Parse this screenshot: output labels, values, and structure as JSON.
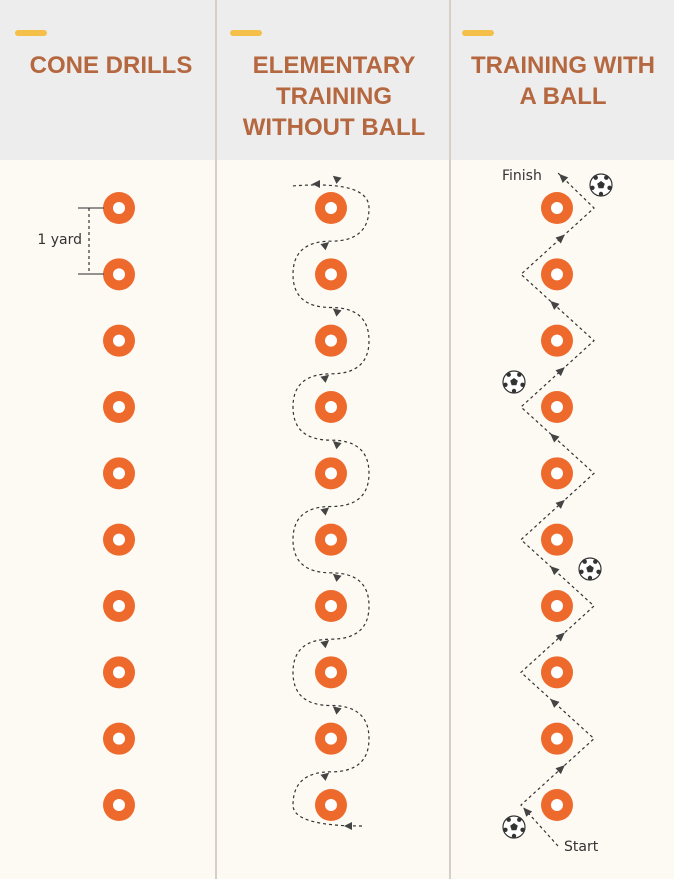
{
  "columns": [
    {
      "title": "CONE DRILLS"
    },
    {
      "title": "ELEMENTARY TRAINING WITHOUT BALL"
    },
    {
      "title": "TRAINING WITH A BALL"
    }
  ],
  "labels": {
    "spacing": "1 yard",
    "finish": "Finish",
    "start": "Start"
  },
  "cones_per_column": 10,
  "colors": {
    "cone": "#ee6a2c",
    "title": "#b5673f",
    "accent_bar": "#f4c04a",
    "header_bg": "#ededed",
    "body_bg": "#fdfaf4",
    "path": "#333333"
  },
  "icons": [
    "cone-icon",
    "soccer-ball-icon",
    "arrow-icon"
  ]
}
